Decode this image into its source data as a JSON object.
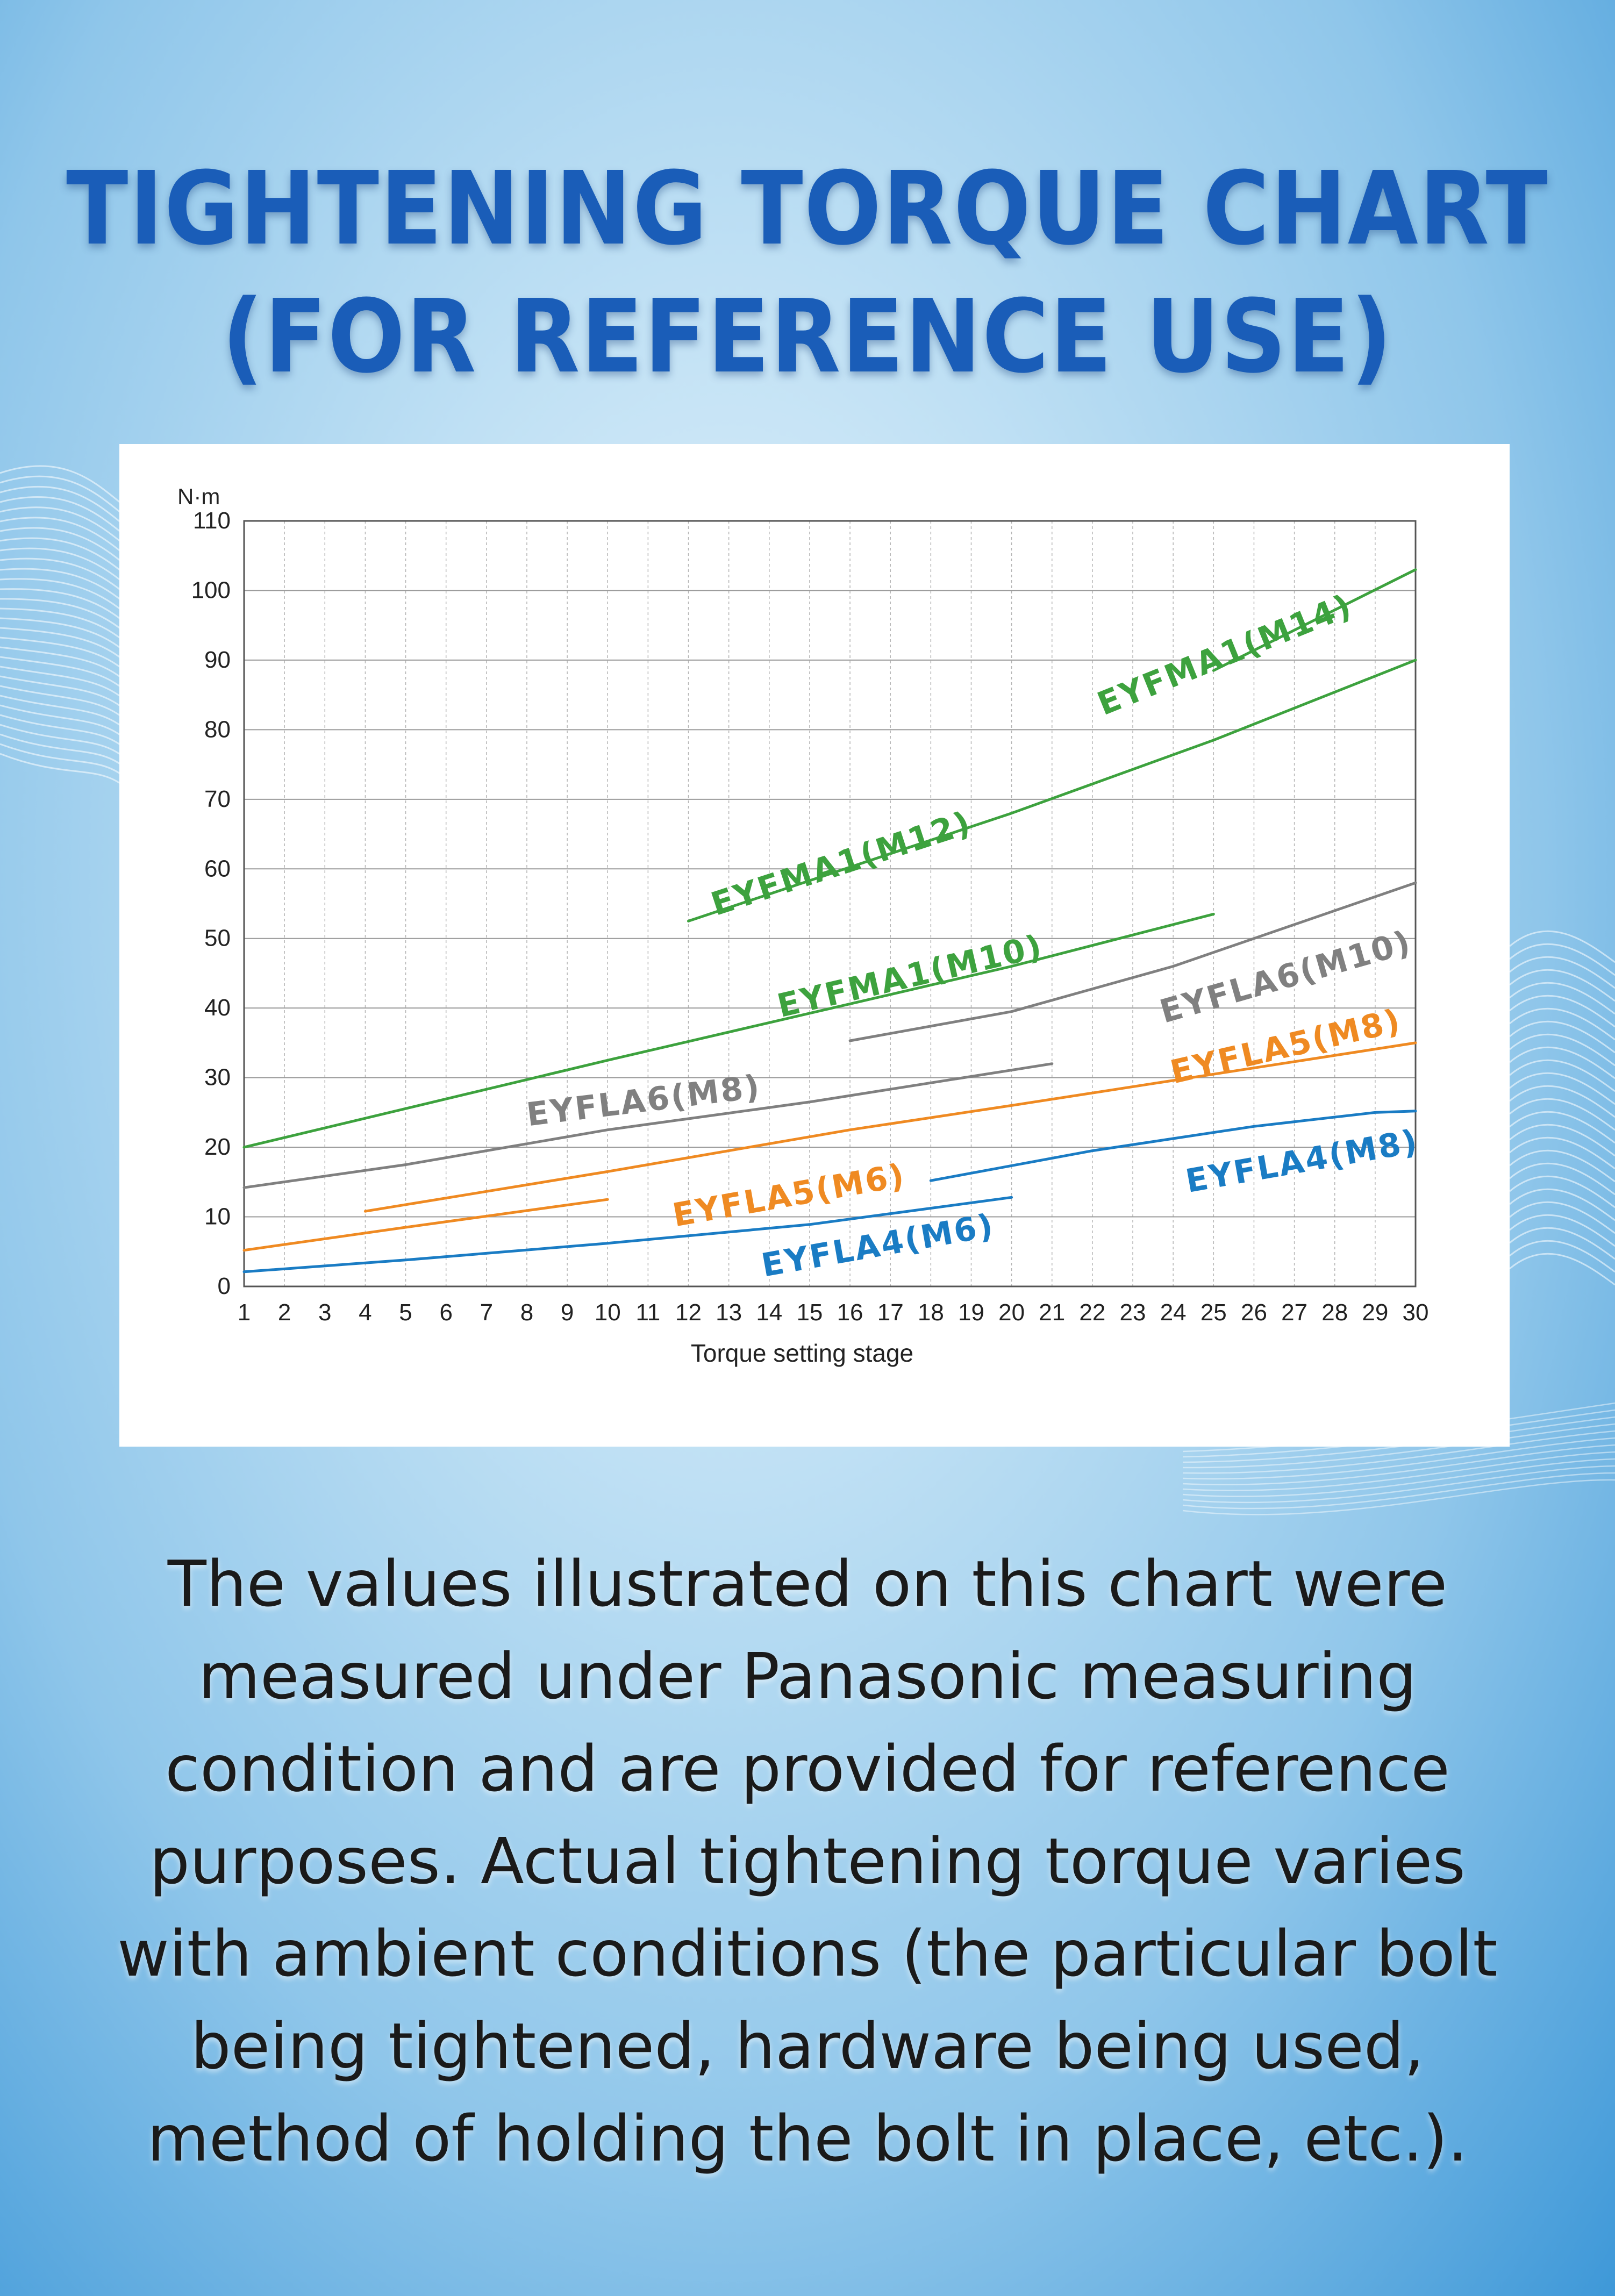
{
  "title": {
    "line1": "TIGHTENING TORQUE CHART",
    "line2": "(FOR REFERENCE USE)"
  },
  "note": {
    "lines": [
      "The values illustrated on this chart were",
      "measured under Panasonic measuring",
      "condition and are provided for reference",
      "purposes. Actual tightening torque varies",
      "with ambient conditions (the particular bolt",
      "being tightened, hardware being used,",
      "method of holding the bolt in place, etc.)."
    ]
  },
  "chart_data": {
    "type": "line",
    "xlabel": "Torque setting stage",
    "ylabel": "N·m",
    "xlim": [
      1,
      30
    ],
    "ylim": [
      0,
      110
    ],
    "x_ticks": [
      1,
      2,
      3,
      4,
      5,
      6,
      7,
      8,
      9,
      10,
      11,
      12,
      13,
      14,
      15,
      16,
      17,
      18,
      19,
      20,
      21,
      22,
      23,
      24,
      25,
      26,
      27,
      28,
      29,
      30
    ],
    "y_ticks": [
      0,
      10,
      20,
      30,
      40,
      50,
      60,
      70,
      80,
      90,
      100,
      110
    ],
    "grid": {
      "horizontal": true,
      "vertical": "dashed"
    },
    "colors": {
      "green": "#3da23e",
      "gray": "#808080",
      "orange": "#ef8a22",
      "blue": "#1a7cc4"
    },
    "series": [
      {
        "name": "EYFLA4(M6)",
        "color": "#1a7cc4",
        "points": [
          [
            1,
            2.1
          ],
          [
            5,
            3.8
          ],
          [
            10,
            6.2
          ],
          [
            15,
            8.9
          ],
          [
            20,
            12.8
          ]
        ]
      },
      {
        "name": "EYFLA4(M8)",
        "color": "#1a7cc4",
        "points": [
          [
            18,
            15.2
          ],
          [
            22,
            19.5
          ],
          [
            26,
            23
          ],
          [
            29,
            25
          ],
          [
            30,
            25.2
          ]
        ]
      },
      {
        "name": "EYFLA5(M6)",
        "color": "#ef8a22",
        "points": [
          [
            1,
            5.2
          ],
          [
            5,
            8.5
          ],
          [
            10,
            12.5
          ]
        ]
      },
      {
        "name": "EYFLA5(M8)",
        "color": "#ef8a22",
        "points": [
          [
            4,
            10.8
          ],
          [
            10,
            16.5
          ],
          [
            16,
            22.5
          ],
          [
            20,
            26
          ],
          [
            25,
            30.5
          ],
          [
            30,
            35
          ]
        ]
      },
      {
        "name": "EYFLA6(M8)",
        "color": "#808080",
        "points": [
          [
            1,
            14.2
          ],
          [
            5,
            17.5
          ],
          [
            10,
            22.5
          ],
          [
            15,
            26.5
          ],
          [
            21,
            32
          ]
        ]
      },
      {
        "name": "EYFLA6(M10)",
        "color": "#808080",
        "points": [
          [
            16,
            35.3
          ],
          [
            20,
            39.5
          ],
          [
            24,
            46
          ],
          [
            30,
            58
          ]
        ]
      },
      {
        "name": "EYFMA1(M10)",
        "color": "#3da23e",
        "points": [
          [
            1,
            20
          ],
          [
            10,
            32.5
          ],
          [
            20,
            46
          ],
          [
            25,
            53.5
          ]
        ]
      },
      {
        "name": "EYFMA1(M12)",
        "color": "#3da23e",
        "points": [
          [
            12,
            52.5
          ],
          [
            20,
            68
          ],
          [
            25,
            78.5
          ],
          [
            30,
            90
          ]
        ]
      },
      {
        "name": "EYFMA1(M14)",
        "color": "#3da23e",
        "points": [
          [
            25,
            88.5
          ],
          [
            30,
            103
          ]
        ]
      }
    ],
    "labels": [
      {
        "text": "EYFMA1(M14)",
        "color": "#3da23e",
        "x": 25.3,
        "y": 90.5,
        "angle": 22
      },
      {
        "text": "EYFMA1(M12)",
        "color": "#3da23e",
        "x": 15.8,
        "y": 60.5,
        "angle": 18
      },
      {
        "text": "EYFMA1(M10)",
        "color": "#3da23e",
        "x": 17.5,
        "y": 44.3,
        "angle": 13
      },
      {
        "text": "EYFLA6(M10)",
        "color": "#808080",
        "x": 26.8,
        "y": 44.2,
        "angle": 16
      },
      {
        "text": "EYFLA6(M8)",
        "color": "#808080",
        "x": 10.9,
        "y": 26.4,
        "angle": 7
      },
      {
        "text": "EYFLA5(M8)",
        "color": "#ef8a22",
        "x": 26.8,
        "y": 34.2,
        "angle": 13
      },
      {
        "text": "EYFLA5(M6)",
        "color": "#ef8a22",
        "x": 14.5,
        "y": 12.8,
        "angle": 10
      },
      {
        "text": "EYFLA4(M8)",
        "color": "#1a7cc4",
        "x": 27.2,
        "y": 17.7,
        "angle": 10
      },
      {
        "text": "EYFLA4(M6)",
        "color": "#1a7cc4",
        "x": 16.7,
        "y": 5.6,
        "angle": 10
      }
    ]
  }
}
